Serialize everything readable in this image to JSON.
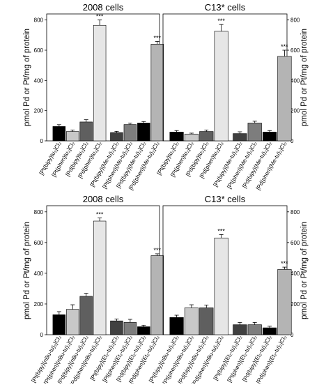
{
  "figure": {
    "ylabel": "pmol Pd or Pt/mg of protein"
  },
  "chart_data": [
    {
      "type": "bar",
      "title": "2008 cells",
      "ylim": [
        0,
        840
      ],
      "yticks": [
        0,
        200,
        400,
        600,
        800
      ],
      "categories": [
        "[Pt(bipy)tu₂]Cl₂",
        "[Pt(phen)tu₂]Cl₂",
        "[Pd(bipy)tu₂]Cl₂",
        "[Pd(phen)tu₂]Cl₂",
        "[Pt(bipy)(Me-tu)₂]Cl₂",
        "[Pt(phen)(Me-tu)₂]Cl₂",
        "[Pd(bipy)(Me-tu)₂]Cl₂",
        "[Pd(phen)(Me-tu)₂]Cl₂"
      ],
      "values": [
        95,
        62,
        125,
        765,
        55,
        108,
        118,
        640
      ],
      "errors": [
        12,
        10,
        15,
        35,
        8,
        10,
        10,
        18
      ],
      "significance": [
        "",
        "",
        "",
        "***",
        "",
        "",
        "",
        "***"
      ]
    },
    {
      "type": "bar",
      "title": "C13* cells",
      "ylim": [
        0,
        840
      ],
      "yticks": [
        0,
        200,
        400,
        600,
        800
      ],
      "categories": [
        "[Pt(bipy)tu₂]Cl₂",
        "[Pt(phen)tu₂]Cl₂",
        "[Pd(bipy)tu₂]Cl₂",
        "[Pd(phen)tu₂]Cl₂",
        "[Pt(bipy)(Me-tu)₂]Cl₂",
        "[Pt(phen)(Me-tu)₂]Cl₂",
        "[Pd(bipy)(Me-tu)₂]Cl₂",
        "[Pd(phen)(Me-tu)₂]Cl₂"
      ],
      "values": [
        58,
        45,
        62,
        725,
        48,
        118,
        58,
        560
      ],
      "errors": [
        10,
        6,
        10,
        45,
        12,
        12,
        10,
        40
      ],
      "significance": [
        "",
        "",
        "",
        "***",
        "",
        "",
        "",
        "***"
      ]
    },
    {
      "type": "bar",
      "title": "2008 cells",
      "ylim": [
        0,
        840
      ],
      "yticks": [
        0,
        200,
        400,
        600,
        800
      ],
      "categories": [
        "[Pt(bipy)(nBu-tu)₂]Cl₂",
        "[Pt(phen)(nBu-tu)₂]Cl₂",
        "[Pd(bipy)(nBu-tu)₂]Cl₂",
        "[Pd(phen)(nBu-tu)₂]Cl₂",
        "[Pt(bipy)(Et₂-tu)₂]Cl₂",
        "[Pt(phen)(Et₂-tu)₂]Cl₂",
        "[Pd(bipy)(Et₂-tu)₂]Cl₂",
        "[Pd(phen)(Et₂-tu)₂]Cl₂"
      ],
      "values": [
        130,
        165,
        250,
        740,
        90,
        80,
        52,
        515
      ],
      "errors": [
        20,
        30,
        20,
        20,
        12,
        20,
        10,
        12
      ],
      "significance": [
        "",
        "",
        "",
        "***",
        "",
        "",
        "",
        "***"
      ]
    },
    {
      "type": "bar",
      "title": "C13* cells",
      "ylim": [
        0,
        840
      ],
      "yticks": [
        0,
        200,
        400,
        600,
        800
      ],
      "categories": [
        "[Pt(bipy)(nBu-tu)₂]Cl₂",
        "[Pt(phen)(nBu-tu)₂]Cl₂",
        "[Pd(bipy)(nBu-tu)₂]Cl₂",
        "[Pd(phen)(nBu-tu)₂]Cl₂",
        "[Pt(bipy)(Et₂-tu)₂]Cl₂",
        "[Pt(phen)(Et₂-tu)₂]Cl₂",
        "[Pd(bipy)(Et₂-tu)₂]Cl₂",
        "[Pd(phen)(Et₂-tu)₂]Cl₂"
      ],
      "values": [
        112,
        175,
        175,
        630,
        65,
        65,
        45,
        425
      ],
      "errors": [
        15,
        20,
        18,
        22,
        15,
        15,
        10,
        15
      ],
      "significance": [
        "",
        "",
        "",
        "***",
        "",
        "",
        "",
        "***"
      ]
    }
  ],
  "colors": {
    "bar_fills": [
      "#000000",
      "#c8c8c8",
      "#5f5f5f",
      "#e6e6e6",
      "#404040",
      "#7d7d7d",
      "#000000",
      "#b4b4b4"
    ],
    "axis": "#000000"
  }
}
